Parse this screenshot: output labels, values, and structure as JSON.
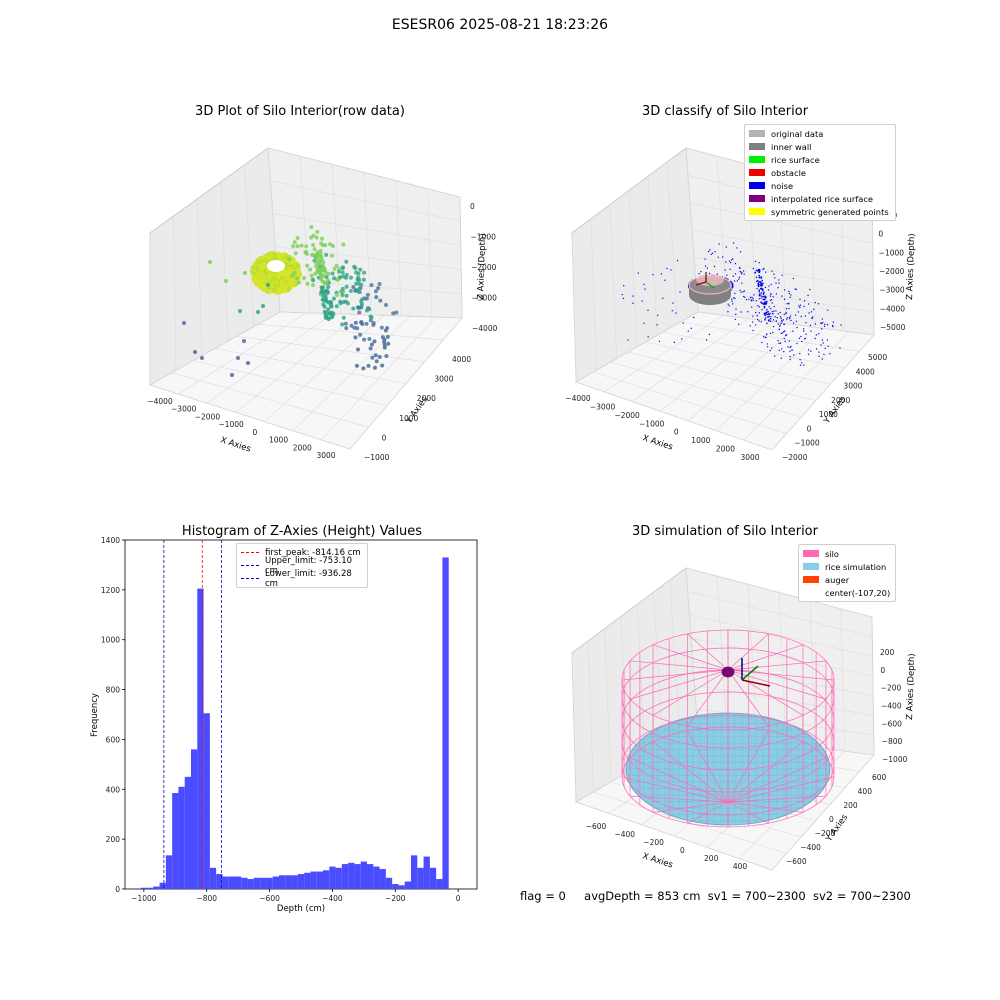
{
  "figure": {
    "suptitle": "ESESR06 2025-08-21 18:23:26",
    "footer": {
      "flag": "flag = 0",
      "avg_depth": "avgDepth = 853 cm",
      "sv1": "sv1 = 700~2300",
      "sv2": "sv2 = 700~2300"
    }
  },
  "panels": {
    "raw": {
      "title": "3D Plot of Silo Interior(row data)",
      "xlabel": "X Axies",
      "ylabel": "Y Axies",
      "zlabel": "Z Axies (Depth)",
      "xticks": [
        "−4000",
        "−3000",
        "−2000",
        "−1000",
        "0",
        "1000",
        "2000",
        "3000"
      ],
      "yticks": [
        "−1000",
        "0",
        "1000",
        "2000",
        "3000",
        "4000"
      ],
      "zticks": [
        "0",
        "−1000",
        "−2000",
        "−3000",
        "−4000"
      ],
      "colors": {
        "bright": "#d6e42a",
        "green": "#7ccf5a",
        "teal": "#2ea487",
        "blue": "#4a6f9a",
        "purple": "#6a5a9a"
      }
    },
    "classify": {
      "title": "3D classify of Silo Interior",
      "xlabel": "X Axies",
      "ylabel": "Y Axies",
      "zlabel": "Z Axies (Depth)",
      "xticks": [
        "−4000",
        "−3000",
        "−2000",
        "−1000",
        "0",
        "1000",
        "2000",
        "3000"
      ],
      "yticks": [
        "−2000",
        "−1000",
        "0",
        "1000",
        "2000",
        "3000",
        "4000",
        "5000"
      ],
      "zticks": [
        "1000",
        "0",
        "−1000",
        "−2000",
        "−3000",
        "−4000",
        "−5000"
      ],
      "legend": [
        {
          "label": "original data",
          "color": "#b3b3b3"
        },
        {
          "label": "inner wall",
          "color": "#808080"
        },
        {
          "label": "rice surface",
          "color": "#00ee00"
        },
        {
          "label": "obstacle",
          "color": "#ee0000"
        },
        {
          "label": "noise",
          "color": "#0000ee"
        },
        {
          "label": "interpolated rice surface",
          "color": "#800080"
        },
        {
          "label": "symmetric generated points",
          "color": "#ffff00"
        }
      ]
    },
    "simulation": {
      "title": "3D simulation of Silo Interior",
      "xlabel": "X Axies",
      "ylabel": "Y Axies",
      "zlabel": "Z Axies (Depth)",
      "xticks": [
        "−600",
        "−400",
        "−200",
        "0",
        "200",
        "400"
      ],
      "yticks": [
        "−600",
        "−400",
        "−200",
        "0",
        "200",
        "400",
        "600"
      ],
      "zticks": [
        "200",
        "0",
        "−200",
        "−400",
        "−600",
        "−800",
        "−1000"
      ],
      "legend": [
        {
          "label": "silo",
          "color": "#ff69b4"
        },
        {
          "label": "rice simulation",
          "color": "#87ceeb"
        },
        {
          "label": "auger",
          "color": "#ff4500"
        },
        {
          "label": "center(-107,20)",
          "color": ""
        }
      ]
    }
  },
  "chart_data": {
    "type": "bar",
    "title": "Histogram of Z-Axies (Height) Values",
    "xlabel": "Depth (cm)",
    "ylabel": "Frequency",
    "xlim": [
      -1060,
      60
    ],
    "ylim": [
      0,
      1400
    ],
    "xticks": [
      -1000,
      -800,
      -600,
      -400,
      -200,
      0
    ],
    "yticks": [
      0,
      200,
      400,
      600,
      800,
      1000,
      1200,
      1400
    ],
    "bar_color": "#4b4bff",
    "bin_width": 20,
    "bins": [
      {
        "x": -1000,
        "count": 5
      },
      {
        "x": -980,
        "count": 5
      },
      {
        "x": -960,
        "count": 10
      },
      {
        "x": -940,
        "count": 25
      },
      {
        "x": -920,
        "count": 135
      },
      {
        "x": -900,
        "count": 385
      },
      {
        "x": -880,
        "count": 410
      },
      {
        "x": -860,
        "count": 450
      },
      {
        "x": -840,
        "count": 560
      },
      {
        "x": -820,
        "count": 1205
      },
      {
        "x": -800,
        "count": 705
      },
      {
        "x": -780,
        "count": 85
      },
      {
        "x": -760,
        "count": 60
      },
      {
        "x": -740,
        "count": 50
      },
      {
        "x": -720,
        "count": 50
      },
      {
        "x": -700,
        "count": 50
      },
      {
        "x": -680,
        "count": 45
      },
      {
        "x": -660,
        "count": 40
      },
      {
        "x": -640,
        "count": 45
      },
      {
        "x": -620,
        "count": 45
      },
      {
        "x": -600,
        "count": 45
      },
      {
        "x": -580,
        "count": 50
      },
      {
        "x": -560,
        "count": 55
      },
      {
        "x": -540,
        "count": 55
      },
      {
        "x": -520,
        "count": 55
      },
      {
        "x": -500,
        "count": 60
      },
      {
        "x": -480,
        "count": 65
      },
      {
        "x": -460,
        "count": 70
      },
      {
        "x": -440,
        "count": 70
      },
      {
        "x": -420,
        "count": 75
      },
      {
        "x": -400,
        "count": 90
      },
      {
        "x": -380,
        "count": 85
      },
      {
        "x": -360,
        "count": 100
      },
      {
        "x": -340,
        "count": 105
      },
      {
        "x": -320,
        "count": 100
      },
      {
        "x": -300,
        "count": 110
      },
      {
        "x": -280,
        "count": 100
      },
      {
        "x": -260,
        "count": 90
      },
      {
        "x": -240,
        "count": 80
      },
      {
        "x": -220,
        "count": 45
      },
      {
        "x": -200,
        "count": 20
      },
      {
        "x": -180,
        "count": 15
      },
      {
        "x": -160,
        "count": 30
      },
      {
        "x": -140,
        "count": 135
      },
      {
        "x": -120,
        "count": 85
      },
      {
        "x": -100,
        "count": 130
      },
      {
        "x": -80,
        "count": 85
      },
      {
        "x": -60,
        "count": 40
      },
      {
        "x": -40,
        "count": 1330
      }
    ],
    "vlines": [
      {
        "x": -814.16,
        "color": "#ff0000",
        "label": "first_peak: -814.16 cm"
      },
      {
        "x": -753.1,
        "color": "#0000cc",
        "label": "Upper_limit: -753.10 cm"
      },
      {
        "x": -936.28,
        "color": "#0000cc",
        "label": "Lower_limit: -936.28 cm"
      }
    ],
    "legend_position": "top-center"
  }
}
